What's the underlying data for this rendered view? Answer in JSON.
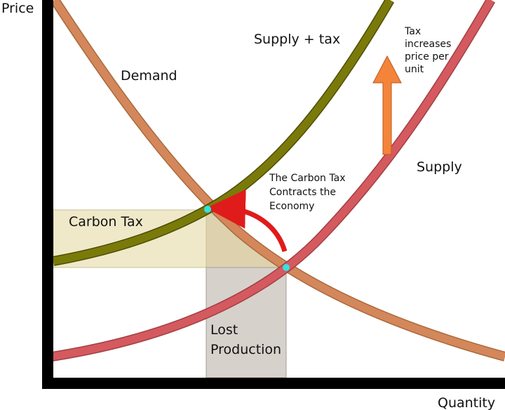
{
  "axes": {
    "y_label": "Price",
    "x_label": "Quantity"
  },
  "curves": {
    "demand": {
      "label": "Demand",
      "color": "#d4875a"
    },
    "supply": {
      "label": "Supply",
      "color": "#d45a5f"
    },
    "supply_tax": {
      "label": "Supply + tax",
      "color": "#7a7a0a"
    }
  },
  "regions": {
    "carbon_tax": {
      "label": "Carbon Tax",
      "color": "#efe9c9"
    },
    "lost_production": {
      "label_line1": "Lost",
      "label_line2": "Production",
      "color": "#d7d1cc"
    }
  },
  "annotations": {
    "tax_arrow": {
      "line1": "Tax",
      "line2": "increases",
      "line3": "price per",
      "line4": "unit",
      "color": "#f4843a"
    },
    "contracts": {
      "line1": "The Carbon Tax",
      "line2": "Contracts the",
      "line3": "Economy",
      "color": "#e01b1b"
    }
  },
  "points": {
    "color": "#33e3e3"
  }
}
